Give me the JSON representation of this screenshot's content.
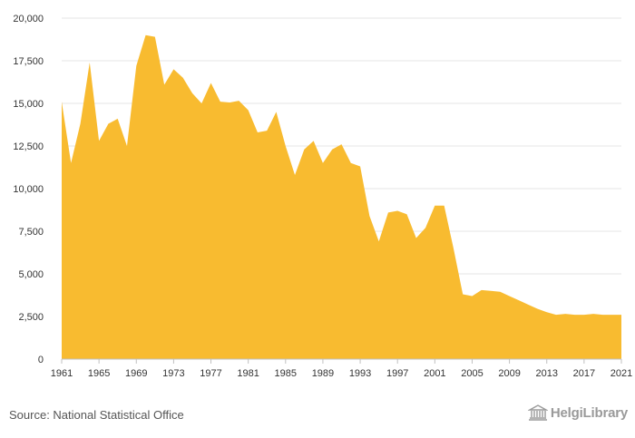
{
  "chart_data": {
    "type": "area",
    "title": "",
    "xlabel": "",
    "ylabel": "",
    "ylim": [
      0,
      20000
    ],
    "y_ticks": [
      0,
      2500,
      5000,
      7500,
      10000,
      12500,
      15000,
      17500,
      20000
    ],
    "y_tick_labels": [
      "0",
      "2,500",
      "5,000",
      "7,500",
      "10,000",
      "12,500",
      "15,000",
      "17,500",
      "20,000"
    ],
    "x_tick_labels": [
      "1961",
      "1965",
      "1969",
      "1973",
      "1977",
      "1981",
      "1985",
      "1989",
      "1993",
      "1997",
      "2001",
      "2005",
      "2009",
      "2013",
      "2017",
      "2021"
    ],
    "fill_color": "#f8bb30",
    "grid": true,
    "x": [
      1961,
      1962,
      1963,
      1964,
      1965,
      1966,
      1967,
      1968,
      1969,
      1970,
      1971,
      1972,
      1973,
      1974,
      1975,
      1976,
      1977,
      1978,
      1979,
      1980,
      1981,
      1982,
      1983,
      1984,
      1985,
      1986,
      1987,
      1988,
      1989,
      1990,
      1991,
      1992,
      1993,
      1994,
      1995,
      1996,
      1997,
      1998,
      1999,
      2000,
      2001,
      2002,
      2003,
      2004,
      2005,
      2006,
      2007,
      2008,
      2009,
      2010,
      2011,
      2012,
      2013,
      2014,
      2015,
      2016,
      2017,
      2018,
      2019,
      2020,
      2021
    ],
    "values": [
      15100,
      11500,
      13800,
      17400,
      12800,
      13800,
      14100,
      12500,
      17200,
      19000,
      18900,
      16100,
      17000,
      16500,
      15600,
      15000,
      16200,
      15100,
      15050,
      15150,
      14600,
      13300,
      13400,
      14500,
      12500,
      10800,
      12300,
      12800,
      11500,
      12300,
      12600,
      11500,
      11300,
      8400,
      6900,
      8600,
      8700,
      8500,
      7100,
      7700,
      9000,
      9000,
      6500,
      3800,
      3700,
      4050,
      4000,
      3950,
      3700,
      3450,
      3200,
      2950,
      2750,
      2600,
      2650,
      2600,
      2600,
      2650,
      2600,
      2600,
      2600
    ]
  },
  "footer": {
    "source": "Source: National Statistical Office",
    "brand": "HelgiLibrary"
  },
  "colors": {
    "grid": "#e6e6e6",
    "axis": "#c0c0c0",
    "brand": "#9a9a9a"
  }
}
